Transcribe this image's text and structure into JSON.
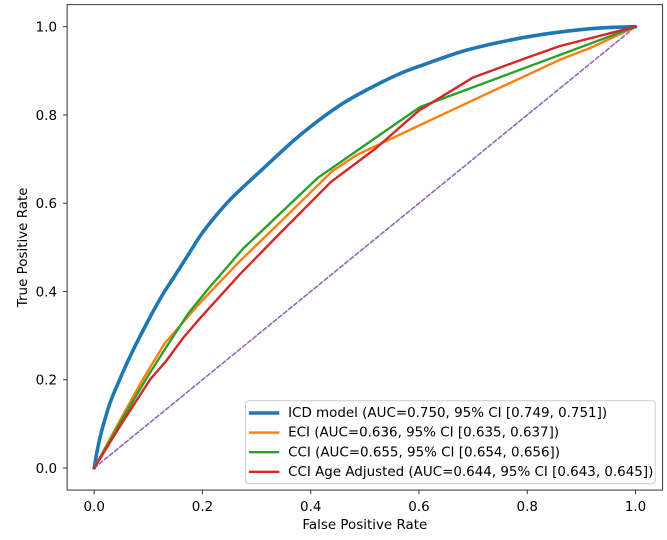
{
  "figure": {
    "background": "#ffffff",
    "text_color": "#000000",
    "spine_color": "#333333",
    "legend_border_color": "#cccccc",
    "legend_background": "#ffffff"
  },
  "chart_data": {
    "type": "line",
    "title": "",
    "xlabel": "False Positive Rate",
    "ylabel": "True Positive Rate",
    "xlim": [
      -0.05,
      1.05
    ],
    "ylim": [
      -0.05,
      1.05
    ],
    "xticks": [
      "0.0",
      "0.2",
      "0.4",
      "0.6",
      "0.8",
      "1.0"
    ],
    "yticks": [
      "0.0",
      "0.2",
      "0.4",
      "0.6",
      "0.8",
      "1.0"
    ],
    "grid": false,
    "legend_position": "lower right",
    "series": [
      {
        "name": "ICD model (AUC=0.750, 95% CI [0.749, 0.751])",
        "short_name": "ICD model",
        "auc": 0.75,
        "ci": [
          0.749,
          0.751
        ],
        "color": "#1f77b4",
        "linewidth": 3.6,
        "smooth": true,
        "in_legend": true,
        "points": [
          [
            0,
            0
          ],
          [
            0.006,
            0.042
          ],
          [
            0.013,
            0.08
          ],
          [
            0.019,
            0.107
          ],
          [
            0.03,
            0.15
          ],
          [
            0.042,
            0.186
          ],
          [
            0.057,
            0.228
          ],
          [
            0.075,
            0.275
          ],
          [
            0.098,
            0.33
          ],
          [
            0.125,
            0.39
          ],
          [
            0.147,
            0.432
          ],
          [
            0.172,
            0.48
          ],
          [
            0.197,
            0.528
          ],
          [
            0.225,
            0.572
          ],
          [
            0.255,
            0.613
          ],
          [
            0.31,
            0.676
          ],
          [
            0.38,
            0.754
          ],
          [
            0.454,
            0.822
          ],
          [
            0.521,
            0.868
          ],
          [
            0.569,
            0.896
          ],
          [
            0.602,
            0.911
          ],
          [
            0.68,
            0.944
          ],
          [
            0.75,
            0.965
          ],
          [
            0.82,
            0.981
          ],
          [
            0.9,
            0.9935
          ],
          [
            0.95,
            0.998
          ],
          [
            1,
            1
          ]
        ]
      },
      {
        "name": "ECI (AUC=0.636, 95% CI [0.635, 0.637])",
        "short_name": "ECI",
        "auc": 0.636,
        "ci": [
          0.635,
          0.637
        ],
        "color": "#ff7f0e",
        "linewidth": 2.4,
        "smooth": false,
        "in_legend": true,
        "points": [
          [
            0,
            0
          ],
          [
            0.046,
            0.104
          ],
          [
            0.0875,
            0.196
          ],
          [
            0.13,
            0.282
          ],
          [
            0.196,
            0.375
          ],
          [
            0.27,
            0.47
          ],
          [
            0.34,
            0.553
          ],
          [
            0.4,
            0.625
          ],
          [
            0.44,
            0.673
          ],
          [
            0.486,
            0.71
          ],
          [
            0.6,
            0.776
          ],
          [
            0.734,
            0.853
          ],
          [
            0.86,
            0.925
          ],
          [
            0.917,
            0.952
          ],
          [
            1,
            1
          ]
        ]
      },
      {
        "name": "CCI (AUC=0.655, 95% CI [0.654, 0.656])",
        "short_name": "CCI",
        "auc": 0.655,
        "ci": [
          0.654,
          0.656
        ],
        "color": "#2ca02c",
        "linewidth": 2.4,
        "smooth": false,
        "in_legend": true,
        "points": [
          [
            0,
            0
          ],
          [
            0.05,
            0.107
          ],
          [
            0.095,
            0.2
          ],
          [
            0.13,
            0.268
          ],
          [
            0.173,
            0.349
          ],
          [
            0.21,
            0.405
          ],
          [
            0.275,
            0.497
          ],
          [
            0.4125,
            0.657
          ],
          [
            0.602,
            0.818
          ],
          [
            1,
            1
          ]
        ]
      },
      {
        "name": "CCI Age Adjusted (AUC=0.644, 95% CI [0.643, 0.645])",
        "short_name": "CCI Age Adjusted",
        "auc": 0.644,
        "ci": [
          0.643,
          0.645
        ],
        "color": "#d62728",
        "linewidth": 2.4,
        "smooth": false,
        "in_legend": true,
        "points": [
          [
            0,
            0
          ],
          [
            0.054,
            0.107
          ],
          [
            0.1035,
            0.201
          ],
          [
            0.132,
            0.241
          ],
          [
            0.165,
            0.2957
          ],
          [
            0.196,
            0.34
          ],
          [
            0.27,
            0.44
          ],
          [
            0.34,
            0.528
          ],
          [
            0.4,
            0.602
          ],
          [
            0.437,
            0.648
          ],
          [
            0.52,
            0.724
          ],
          [
            0.6,
            0.81
          ],
          [
            0.7,
            0.885
          ],
          [
            0.8,
            0.93
          ],
          [
            0.86,
            0.956
          ],
          [
            1,
            1
          ]
        ]
      },
      {
        "name": "chance-diagonal",
        "short_name": "chance",
        "color": "#9467bd",
        "linewidth": 1.6,
        "dash": [
          4.2,
          2.4
        ],
        "smooth": false,
        "in_legend": false,
        "points": [
          [
            0,
            0
          ],
          [
            1,
            1
          ]
        ]
      }
    ]
  }
}
